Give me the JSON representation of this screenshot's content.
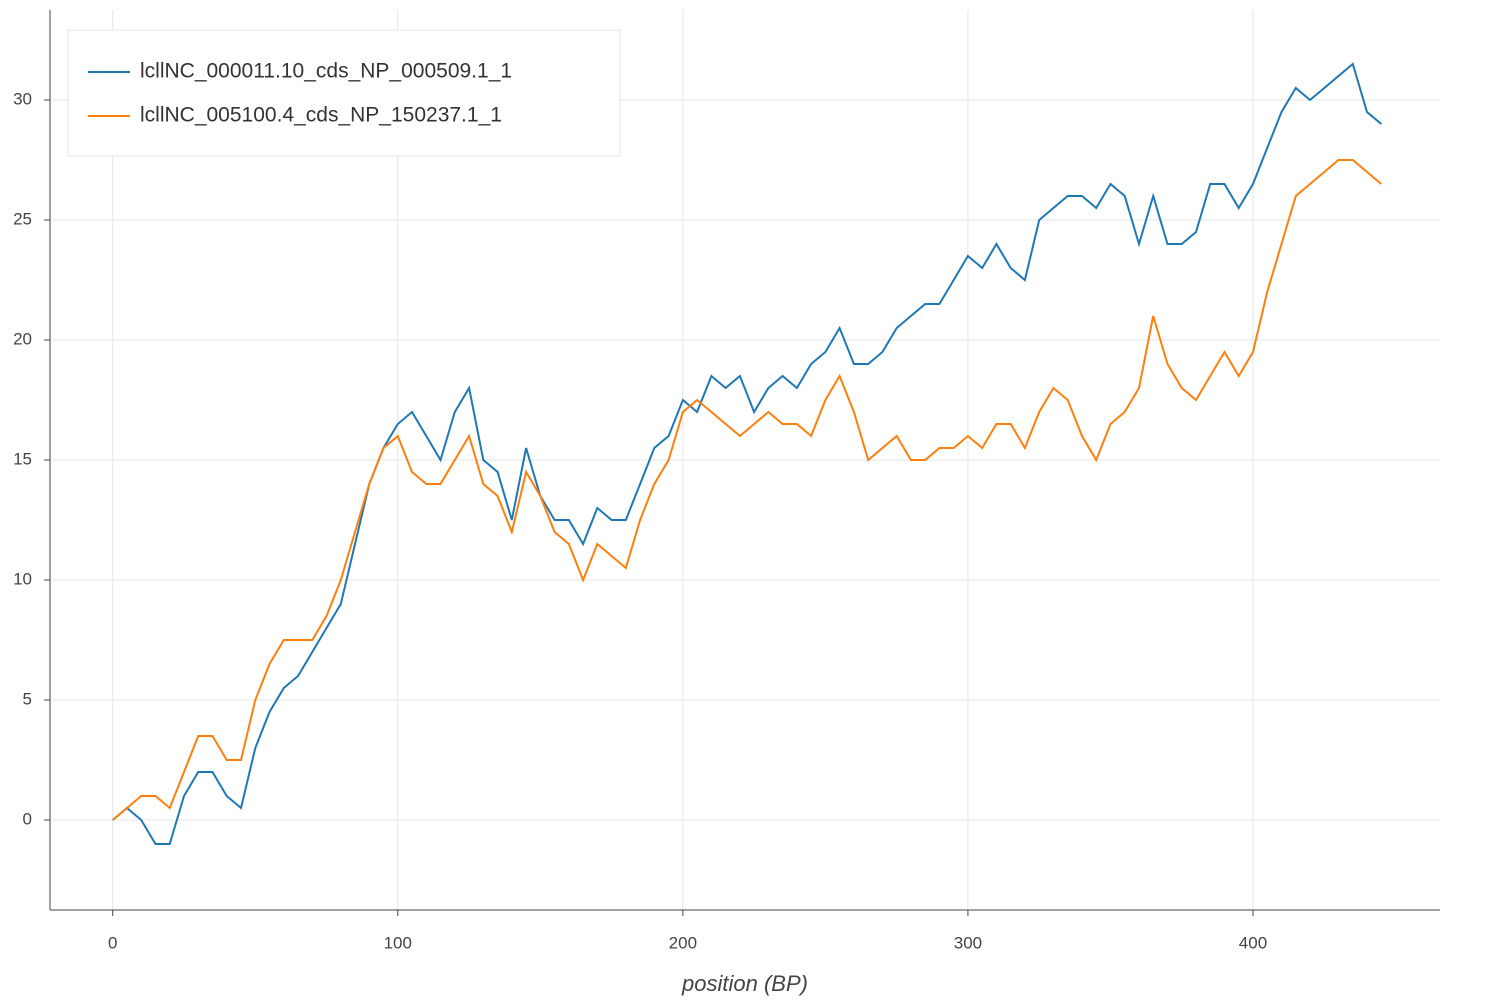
{
  "chart_data": {
    "type": "line",
    "x_label": "position (BP)",
    "x": [
      0,
      5,
      10,
      15,
      20,
      25,
      30,
      35,
      40,
      45,
      50,
      55,
      60,
      65,
      70,
      75,
      80,
      85,
      90,
      95,
      100,
      105,
      110,
      115,
      120,
      125,
      130,
      135,
      140,
      145,
      150,
      155,
      160,
      165,
      170,
      175,
      180,
      185,
      190,
      195,
      200,
      205,
      210,
      215,
      220,
      225,
      230,
      235,
      240,
      245,
      250,
      255,
      260,
      265,
      270,
      275,
      280,
      285,
      290,
      295,
      300,
      305,
      310,
      315,
      320,
      325,
      330,
      335,
      340,
      345,
      350,
      355,
      360,
      365,
      370,
      375,
      380,
      385,
      390,
      395,
      400,
      405,
      410,
      415,
      420,
      425,
      430,
      435,
      440,
      445
    ],
    "series": [
      {
        "name": "lcllNC_000011.10_cds_NP_000509.1_1",
        "color": "#1f77b4",
        "values": [
          0,
          0.5,
          0,
          -1,
          -1,
          1,
          2,
          2,
          1,
          0.5,
          3,
          4.5,
          5.5,
          6,
          7,
          8,
          9,
          11.5,
          14,
          15.5,
          16.5,
          17,
          16,
          15,
          17,
          18,
          15,
          14.5,
          12.5,
          15.5,
          13.5,
          12.5,
          12.5,
          11.5,
          13,
          12.5,
          12.5,
          14,
          15.5,
          16,
          17.5,
          17,
          18.5,
          18,
          18.5,
          17,
          18,
          18.5,
          18,
          19,
          19.5,
          20.5,
          19,
          19,
          19.5,
          20.5,
          21,
          21.5,
          21.5,
          22.5,
          23.5,
          23,
          24,
          23,
          22.5,
          25,
          25.5,
          26,
          26,
          25.5,
          26.5,
          26,
          24,
          26,
          24,
          24,
          24.5,
          26.5,
          26.5,
          25.5,
          26.5,
          28,
          29.5,
          30.5,
          30,
          30.5,
          31,
          31.5,
          29.5,
          29
        ]
      },
      {
        "name": "lcllNC_005100.4_cds_NP_150237.1_1",
        "color": "#ff7f0e",
        "values": [
          0,
          0.5,
          1,
          1,
          0.5,
          2,
          3.5,
          3.5,
          2.5,
          2.5,
          5,
          6.5,
          7.5,
          7.5,
          7.5,
          8.5,
          10,
          12,
          14,
          15.5,
          16,
          14.5,
          14,
          14,
          15,
          16,
          14,
          13.5,
          12,
          14.5,
          13.5,
          12,
          11.5,
          10,
          11.5,
          11,
          10.5,
          12.5,
          14,
          15,
          17,
          17.5,
          17,
          16.5,
          16,
          16.5,
          17,
          16.5,
          16.5,
          16,
          17.5,
          18.5,
          17,
          15,
          15.5,
          16,
          15,
          15,
          15.5,
          15.5,
          16,
          15.5,
          16.5,
          16.5,
          15.5,
          17,
          18,
          17.5,
          16,
          15,
          16.5,
          17,
          18,
          21,
          19,
          18,
          17.5,
          18.5,
          19.5,
          18.5,
          19.5,
          22,
          24,
          26,
          26.5,
          27,
          27.5,
          27.5,
          27,
          26.5
        ]
      }
    ],
    "xlim": [
      -22,
      465.6
    ],
    "ylim": [
      -3.75,
      33.75
    ],
    "xticks": [
      0,
      100,
      200,
      300,
      400
    ],
    "yticks": [
      0,
      5,
      10,
      15,
      20,
      25,
      30
    ],
    "grid": true,
    "legend": "top-left"
  }
}
